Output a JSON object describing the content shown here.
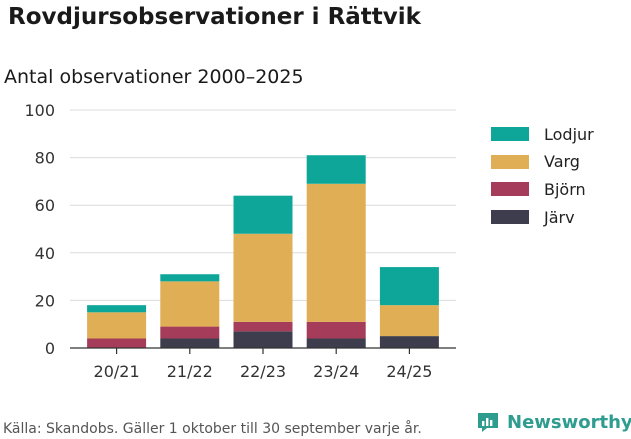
{
  "title": "Rovdjursobservationer i Rättvik",
  "subtitle": "Antal observationer 2000–2025",
  "source": "Källa: Skandobs. Gäller 1 oktober till 30 september varje år.",
  "brand": {
    "name": "Newsworthy",
    "color": "#2e9c8e"
  },
  "chart_data": {
    "type": "bar",
    "stacked": true,
    "categories": [
      "20/21",
      "21/22",
      "22/23",
      "23/24",
      "24/25"
    ],
    "series": [
      {
        "name": "Järv",
        "color": "#3d3d4e",
        "values": [
          0,
          4,
          7,
          4,
          5
        ]
      },
      {
        "name": "Björn",
        "color": "#a53d5a",
        "values": [
          4,
          5,
          4,
          7,
          0
        ]
      },
      {
        "name": "Varg",
        "color": "#dfae55",
        "values": [
          11,
          19,
          37,
          58,
          13
        ]
      },
      {
        "name": "Lodjur",
        "color": "#0fa69a",
        "values": [
          3,
          3,
          16,
          12,
          16
        ]
      }
    ],
    "y_ticks": [
      "0",
      "20",
      "40",
      "60",
      "80",
      "100"
    ],
    "ylim": [
      0,
      100
    ],
    "grid": true,
    "legend": [
      "Lodjur",
      "Varg",
      "Björn",
      "Järv"
    ],
    "legend_position": "right"
  }
}
